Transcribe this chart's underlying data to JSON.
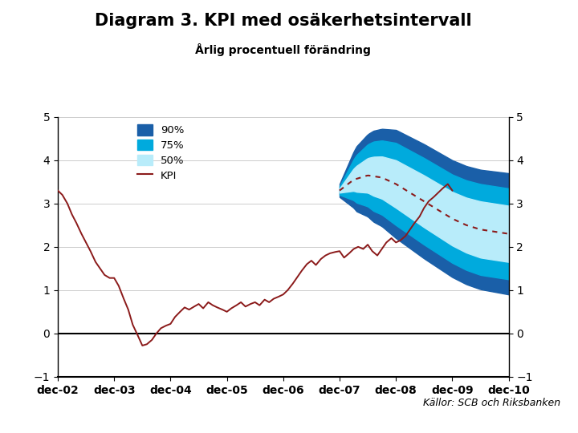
{
  "title": "Diagram 3. KPI med osäkerhetsintervall",
  "subtitle": "Årlig procentuell förändring",
  "source": "Källor: SCB och Riksbanken",
  "ylim": [
    -1,
    5
  ],
  "yticks": [
    -1,
    0,
    1,
    2,
    3,
    4,
    5
  ],
  "x_labels": [
    "dec-02",
    "dec-03",
    "dec-04",
    "dec-05",
    "dec-06",
    "dec-07",
    "dec-08",
    "dec-09",
    "dec-10"
  ],
  "colors": {
    "band_90": "#1a5fa8",
    "band_75": "#00aadd",
    "band_50": "#b8ecfa",
    "kpi_line": "#8b1a1a",
    "grid": "#cccccc",
    "zero_line": "#000000",
    "bg": "#ffffff",
    "footer_bar": "#1e3a6e",
    "title_color": "#000000"
  },
  "legend": {
    "band_90": "90%",
    "band_75": "75%",
    "band_50": "50%",
    "kpi": "KPI"
  }
}
